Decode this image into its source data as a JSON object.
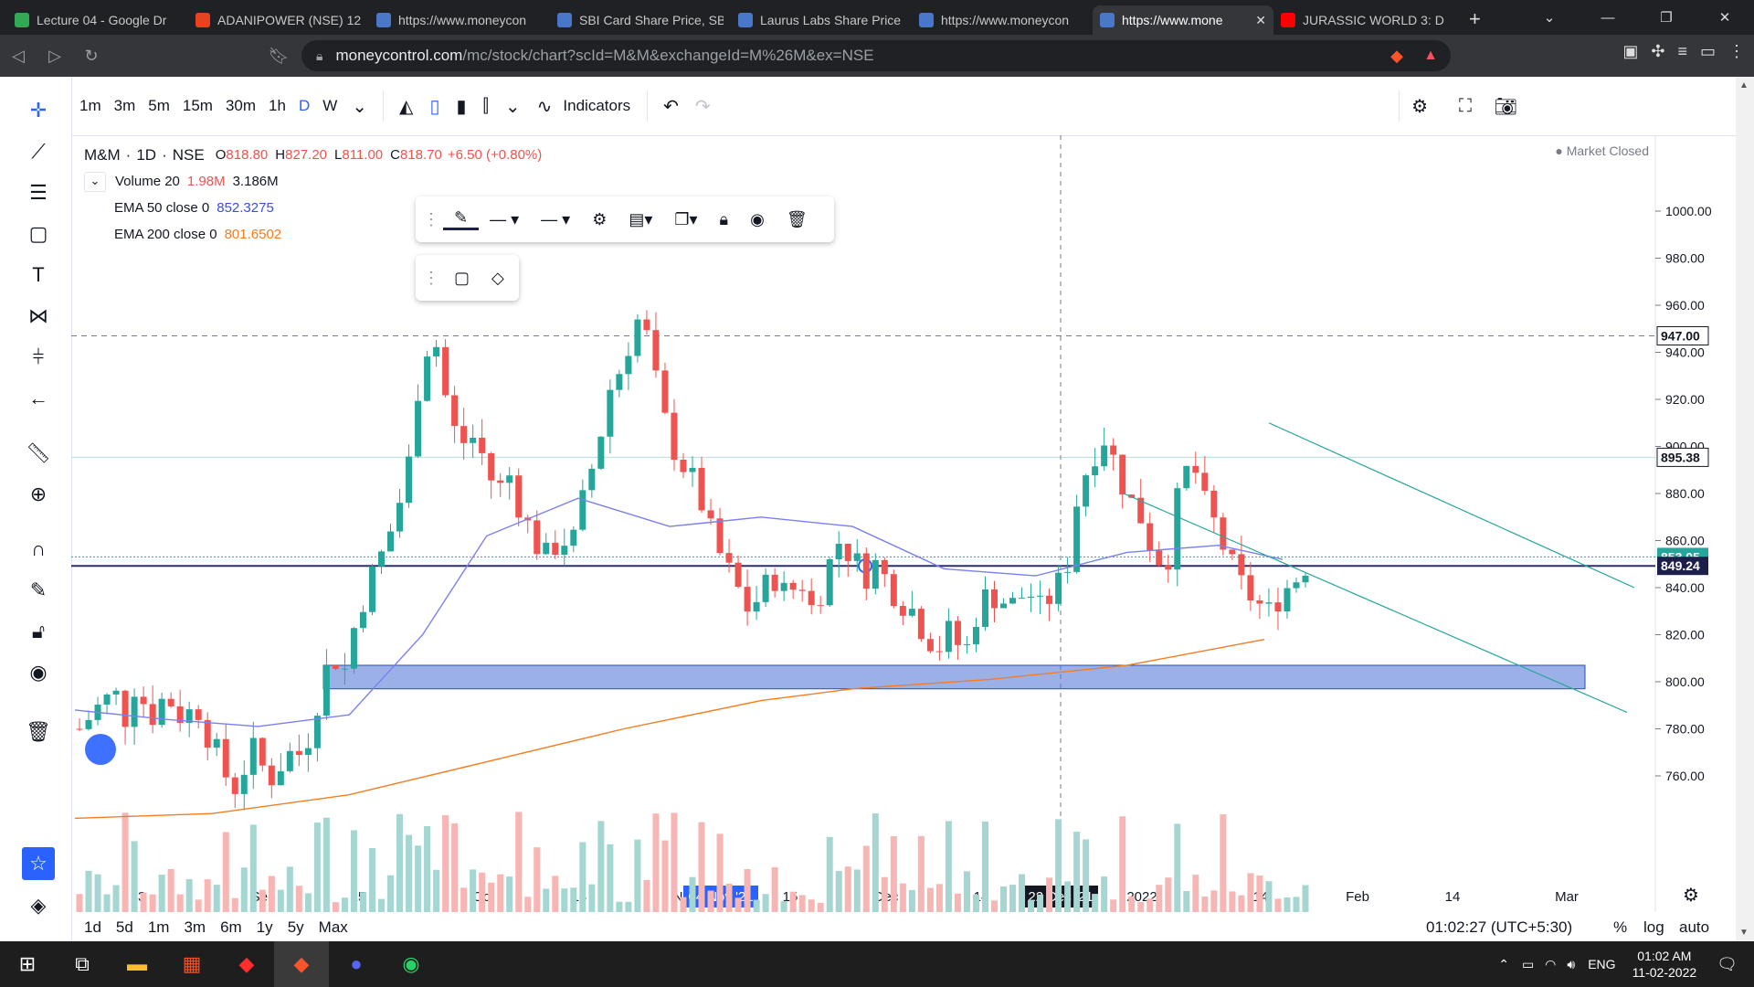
{
  "browser": {
    "tabs": [
      {
        "title": "Lecture 04 - Google Dr",
        "color": "#34a853"
      },
      {
        "title": "ADANIPOWER (NSE) 12",
        "color": "#e8431e"
      },
      {
        "title": "https://www.moneycon",
        "color": "#4a78c9"
      },
      {
        "title": "SBI Card Share Price, SB",
        "color": "#4a78c9"
      },
      {
        "title": "Laurus Labs Share Price",
        "color": "#4a78c9"
      },
      {
        "title": "https://www.moneycon",
        "color": "#4a78c9"
      },
      {
        "title": "https://www.mone",
        "color": "#4a78c9",
        "active": true
      },
      {
        "title": "JURASSIC WORLD 3: D",
        "color": "#ff0000"
      }
    ],
    "url_domain": "moneycontrol.com",
    "url_path": "/mc/stock/chart?scId=M&M&exchangeId=M%26M&ex=NSE"
  },
  "chart": {
    "timeframes": [
      "1m",
      "3m",
      "5m",
      "15m",
      "30m",
      "1h",
      "D",
      "W"
    ],
    "selected_timeframe": "D",
    "indicators_label": "Indicators",
    "symbol": "M&M",
    "interval": "1D",
    "exchange": "NSE",
    "ohlc": {
      "o_label": "O",
      "o": "818.80",
      "h_label": "H",
      "h": "827.20",
      "l_label": "L",
      "l": "811.00",
      "c_label": "C",
      "c": "818.70",
      "change": "+6.50 (+0.80%)"
    },
    "volume_label": "Volume 20",
    "volume_v1": "1.98M",
    "volume_v2": "3.186M",
    "ema50_label": "EMA 50 close 0",
    "ema50_value": "852.3275",
    "ema200_label": "EMA 200 close 0",
    "ema200_value": "801.6502",
    "market_status": "Market Closed",
    "price_ticks": [
      "1000.00",
      "980.00",
      "960.00",
      "940.00",
      "920.00",
      "900.00",
      "880.00",
      "860.00",
      "840.00",
      "820.00",
      "800.00",
      "780.00",
      "760.00"
    ],
    "price_labels": [
      {
        "text": "947.00",
        "bg": "#ffffff",
        "fg": "#131722"
      },
      {
        "text": "895.38",
        "bg": "#ffffff",
        "fg": "#131722"
      },
      {
        "text": "853.05",
        "bg": "#26a69a",
        "fg": "#ffffff"
      },
      {
        "text": "849.24",
        "bg": "#1c1f4a",
        "fg": "#ffffff"
      }
    ],
    "time_ticks": [
      "13",
      "Sep",
      "15",
      "Oct",
      "14",
      "15",
      "Dec",
      "14",
      "2022",
      "14",
      "Feb",
      "14",
      "Mar"
    ],
    "time_highlight_1": "04 Nov '21",
    "time_highlight_2": "22 Dec '21",
    "time_partial": "N",
    "ranges": [
      "1d",
      "5d",
      "1m",
      "3m",
      "6m",
      "1y",
      "5y",
      "Max"
    ],
    "clock": "01:02:27 (UTC+5:30)",
    "pct": "%",
    "log": "log",
    "auto": "auto",
    "colors": {
      "up": "#26a69a",
      "down": "#ef5350",
      "ema50": "#7b7ff0",
      "ema200": "#f57c20",
      "zone": "#4a6fd6"
    }
  },
  "chart_data": {
    "type": "candlestick",
    "title": "",
    "x_range": [
      "2021-08-09",
      "2022-02-11"
    ],
    "ylim": [
      745,
      1000
    ],
    "ema50_points": [
      [
        0,
        788
      ],
      [
        10,
        784
      ],
      [
        20,
        781
      ],
      [
        30,
        786
      ],
      [
        38,
        820
      ],
      [
        45,
        862
      ],
      [
        55,
        878
      ],
      [
        65,
        866
      ],
      [
        75,
        870
      ],
      [
        85,
        866
      ],
      [
        95,
        848
      ],
      [
        105,
        845
      ],
      [
        115,
        855
      ],
      [
        125,
        858
      ],
      [
        132,
        852
      ]
    ],
    "ema200_points": [
      [
        0,
        742
      ],
      [
        15,
        744
      ],
      [
        30,
        752
      ],
      [
        45,
        766
      ],
      [
        60,
        780
      ],
      [
        75,
        792
      ],
      [
        85,
        797
      ],
      [
        100,
        801
      ],
      [
        115,
        807
      ],
      [
        130,
        818
      ]
    ],
    "horizontal_levels": [
      947,
      895.38,
      853.05,
      849.24
    ],
    "zone": {
      "from": 797,
      "to": 807
    }
  },
  "taskbar": {
    "lang": "ENG",
    "time": "01:02 AM",
    "date": "11-02-2022"
  }
}
